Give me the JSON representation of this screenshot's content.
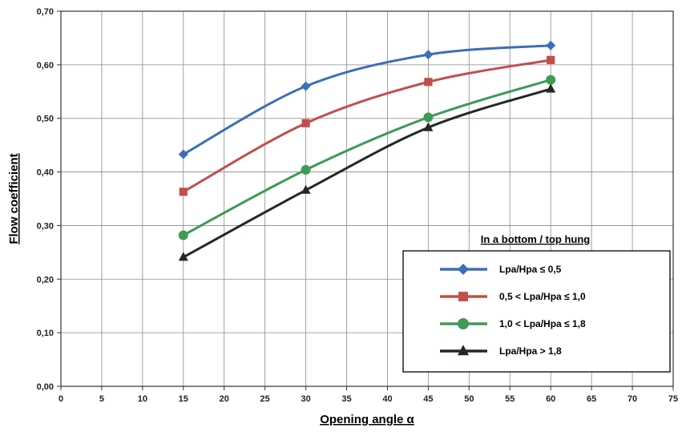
{
  "chart_data": {
    "type": "line",
    "xlabel": "Opening angle α",
    "ylabel": "Flow coefficient",
    "xlim": [
      0,
      75
    ],
    "ylim": [
      0,
      0.7
    ],
    "x_ticks": [
      "0",
      "5",
      "10",
      "15",
      "20",
      "25",
      "30",
      "35",
      "40",
      "45",
      "50",
      "55",
      "60",
      "65",
      "70",
      "75"
    ],
    "y_ticks": [
      "0,00",
      "0,10",
      "0,20",
      "0,30",
      "0,40",
      "0,50",
      "0,60",
      "0,70"
    ],
    "grid": true,
    "x": [
      15,
      30,
      45,
      60
    ],
    "legend_title": "In a bottom / top hung",
    "legend_position": "bottom-right",
    "series": [
      {
        "name": "Lpa/Hpa ≤ 0,5",
        "values": [
          0.433,
          0.56,
          0.619,
          0.636
        ],
        "color": "#3b6fb6",
        "marker": "diamond"
      },
      {
        "name": "0,5 < Lpa/Hpa ≤ 1,0",
        "values": [
          0.363,
          0.491,
          0.568,
          0.609
        ],
        "color": "#c0504d",
        "marker": "square"
      },
      {
        "name": "1,0 < Lpa/Hpa ≤ 1,8",
        "values": [
          0.282,
          0.404,
          0.502,
          0.572
        ],
        "color": "#3e9a57",
        "marker": "circle"
      },
      {
        "name": "Lpa/Hpa > 1,8",
        "values": [
          0.241,
          0.366,
          0.483,
          0.555
        ],
        "color": "#1e2a22",
        "marker": "triangle"
      }
    ]
  }
}
